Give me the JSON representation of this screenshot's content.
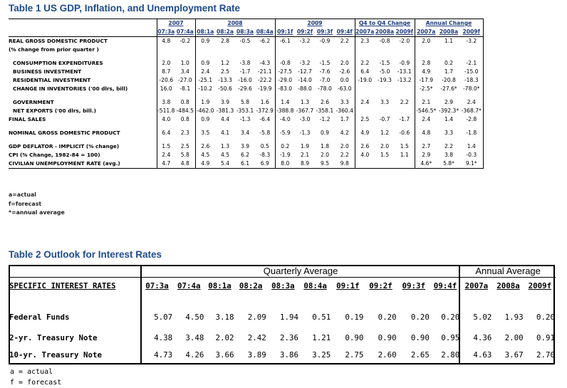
{
  "table1": {
    "title": "Table 1 US GDP, Inflation, and Unemployment Rate",
    "groups": [
      "2007",
      "2008",
      "2009",
      "Q4 to Q4 Change",
      "Annual Change"
    ],
    "periods": [
      "07:3a",
      "07:4a",
      "08:1a",
      "08:2a",
      "08:3a",
      "08:4a",
      "09:1f",
      "09:2f",
      "09:3f",
      "09:4f",
      "2007a",
      "2008a",
      "2009f",
      "2007a",
      "2008a",
      "2009f"
    ],
    "rows": [
      {
        "label": "REAL GROSS DOMESTIC PRODUCT",
        "values": [
          "4.8",
          "-0.2",
          "0.9",
          "2.8",
          "-0.5",
          "-6.2",
          "-6.1",
          "-3.2",
          "-0.9",
          "2.2",
          "2.3",
          "-0.8",
          "-2.0",
          "2.0",
          "1.1",
          "-3.2"
        ]
      },
      {
        "label": "(% change from prior quarter )",
        "values": [
          "",
          "",
          "",
          "",
          "",
          "",
          "",
          "",
          "",
          "",
          "",
          "",
          "",
          "",
          "",
          ""
        ]
      },
      {
        "label": "CONSUMPTION EXPENDITURES",
        "values": [
          "2.0",
          "1.0",
          "0.9",
          "1.2",
          "-3.8",
          "-4.3",
          "-0.8",
          "-3.2",
          "-1.5",
          "2.0",
          "2.2",
          "-1.5",
          "-0.9",
          "2.8",
          "0.2",
          "-2.1"
        ]
      },
      {
        "label": "BUSINESS INVESTMENT",
        "values": [
          "8.7",
          "3.4",
          "2.4",
          "2.5",
          "-1.7",
          "-21.1",
          "-27.5",
          "-12.7",
          "-7.6",
          "-2.6",
          "6.4",
          "-5.0",
          "-13.1",
          "4.9",
          "1.7",
          "-15.0"
        ]
      },
      {
        "label": "RESIDENTIAL INVESTMENT",
        "values": [
          "-20.6",
          "-27.0",
          "-25.1",
          "-13.3",
          "-16.0",
          "-22.2",
          "-29.0",
          "-14.0",
          "-7.0",
          "0.0",
          "-19.0",
          "-19.3",
          "-13.2",
          "-17.9",
          "-20.8",
          "-18.3"
        ]
      },
      {
        "label": "CHANGE IN INVENTORIES ('00 dlrs, bill)",
        "values": [
          "16.0",
          "-8.1",
          "-10.2",
          "-50.6",
          "-29.6",
          "-19.9",
          "-83.0",
          "-88.0",
          "-78.0",
          "-63.0",
          "",
          "",
          "",
          "-2.5*",
          "-27.6*",
          "-78.0*"
        ]
      },
      {
        "label": "GOVERNMENT",
        "values": [
          "3.8",
          "0.8",
          "1.9",
          "3.9",
          "5.8",
          "1.6",
          "1.4",
          "1.3",
          "2.6",
          "3.3",
          "2.4",
          "3.3",
          "2.2",
          "2.1",
          "2.9",
          "2.4"
        ]
      },
      {
        "label": "NET EXPORTS ('00 dlrs, bill.)",
        "values": [
          "-511.8",
          "-484.5",
          "-462.0",
          "-381.3",
          "-353.1",
          "-372.9",
          "-388.8",
          "-367.7",
          "-358.1",
          "-360.4",
          "",
          "",
          "",
          "-546.5*",
          "-392.3*",
          "-368.7*"
        ]
      },
      {
        "label": "FINAL SALES",
        "values": [
          "4.0",
          "0.8",
          "0.9",
          "4.4",
          "-1.3",
          "-6.4",
          "-4.0",
          "-3.0",
          "-1.2",
          "1.7",
          "2.5",
          "-0.7",
          "-1.7",
          "2.4",
          "1.4",
          "-2.8"
        ]
      },
      {
        "label": "NOMINAL GROSS DOMESTIC PRODUCT",
        "values": [
          "6.4",
          "2.3",
          "3.5",
          "4.1",
          "3.4",
          "-5.8",
          "-5.9",
          "-1.3",
          "0.9",
          "4.2",
          "4.9",
          "1.2",
          "-0.6",
          "4.8",
          "3.3",
          "-1.8"
        ]
      },
      {
        "label": "GDP DEFLATOR - IMPLICIT (% change)",
        "values": [
          "1.5",
          "2.5",
          "2.6",
          "1.3",
          "3.9",
          "0.5",
          "0.2",
          "1.9",
          "1.8",
          "2.0",
          "2.6",
          "2.0",
          "1.5",
          "2.7",
          "2.2",
          "1.4"
        ]
      },
      {
        "label": "CPI (% Change, 1982-84 = 100)",
        "values": [
          "2.4",
          "5.8",
          "4.5",
          "4.5",
          "6.2",
          "-8.3",
          "-1.9",
          "2.1",
          "2.0",
          "2.2",
          "4.0",
          "1.5",
          "1.1",
          "2.9",
          "3.8",
          "-0.3"
        ]
      },
      {
        "label": "CIVILIAN UNEMPLOYMENT RATE (avg.)",
        "values": [
          "4.7",
          "4.8",
          "4.9",
          "5.4",
          "6.1",
          "6.9",
          "8.0",
          "8.9",
          "9.5",
          "9.8",
          "",
          "",
          "",
          "4.6*",
          "5.8*",
          "9.1*"
        ]
      }
    ],
    "notes": [
      "a=actual",
      "f=forecast",
      "*=annual average"
    ]
  },
  "table2": {
    "title": "Table 2 Outlook for Interest Rates",
    "quarterly_header": "Quarterly Average",
    "annual_header": "Annual Average",
    "row_header": "SPECIFIC INTEREST RATES",
    "periods": [
      "07:3a",
      "07:4a",
      "08:1a",
      "08:2a",
      "08:3a",
      "08:4a",
      "09:1f",
      "09:2f",
      "09:3f",
      "09:4f",
      "2007a",
      "2008a",
      "2009f"
    ],
    "rows": [
      {
        "label": "Federal Funds",
        "values": [
          "5.07",
          "4.50",
          "3.18",
          "2.09",
          "1.94",
          "0.51",
          "0.19",
          "0.20",
          "0.20",
          "0.20",
          "5.02",
          "1.93",
          "0.20"
        ]
      },
      {
        "label": "2-yr. Treasury Note",
        "values": [
          "4.38",
          "3.48",
          "2.02",
          "2.42",
          "2.36",
          "1.21",
          "0.90",
          "0.90",
          "0.90",
          "0.95",
          "4.36",
          "2.00",
          "0.91"
        ]
      },
      {
        "label": "10-yr. Treasury Note",
        "values": [
          "4.73",
          "4.26",
          "3.66",
          "3.89",
          "3.86",
          "3.25",
          "2.75",
          "2.60",
          "2.65",
          "2.80",
          "4.63",
          "3.67",
          "2.70"
        ]
      }
    ],
    "notes": [
      "a = actual",
      "f = forecast"
    ]
  }
}
